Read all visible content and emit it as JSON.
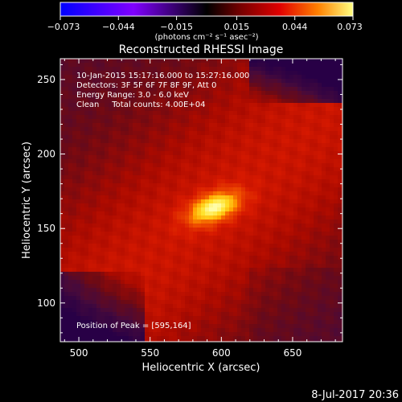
{
  "chart_data": {
    "type": "heatmap",
    "title": "Reconstructed RHESSI Image",
    "xlabel": "Heliocentric X (arcsec)",
    "ylabel": "Heliocentric Y (arcsec)",
    "xlim": [
      487,
      685
    ],
    "ylim": [
      74,
      264
    ],
    "x_ticks": [
      500,
      550,
      600,
      650
    ],
    "y_ticks": [
      100,
      150,
      200,
      250
    ],
    "colorbar": {
      "range": [
        -0.073,
        0.073
      ],
      "ticks": [
        "-0.073",
        "-0.044",
        "-0.015",
        "0.015",
        "0.044",
        "0.073"
      ],
      "unit": "(photons cm⁻² s⁻¹ asec⁻²)"
    },
    "annotations": [
      "10-Jan-2015 15:17:16.000 to 15:27:16.000",
      "Detectors: 3F 5F 6F 7F 8F 9F, Att 0",
      "Energy Range: 3.0 - 6.0 keV",
      "Clean     Total counts: 4.00E+04"
    ],
    "peak_label": "Position of Peak = [595,164]",
    "peak_position": [
      595,
      164
    ],
    "grid": false,
    "colormap": [
      "#0000ff",
      "#7f00ff",
      "#000000",
      "#6b0000",
      "#d40000",
      "#ff5000",
      "#ffa000",
      "#ffe000",
      "#ffffff"
    ]
  },
  "footer": {
    "date": "8-Jul-2017 20:36"
  }
}
